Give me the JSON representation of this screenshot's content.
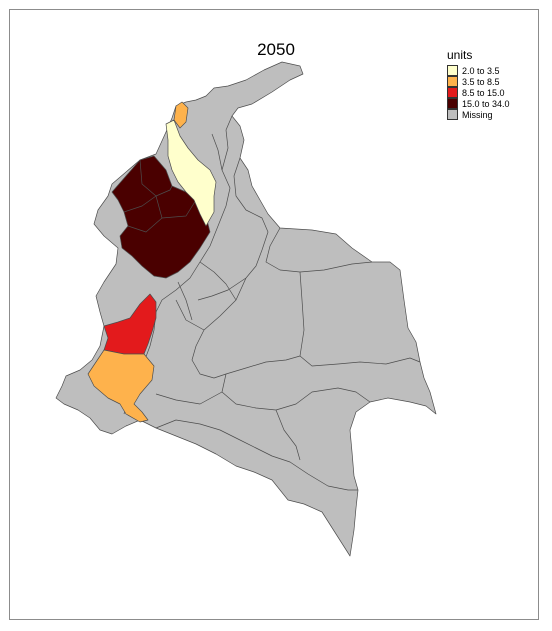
{
  "map": {
    "title": "2050",
    "missing_color": "#bebebe",
    "legend": {
      "title": "units",
      "items": [
        {
          "label": "2.0 to 3.5",
          "color": "#ffffcc"
        },
        {
          "label": "3.5 to 8.5",
          "color": "#feb24c"
        },
        {
          "label": "8.5 to 15.0",
          "color": "#e31a1c"
        },
        {
          "label": "15.0 to 34.0",
          "color": "#4a0000"
        },
        {
          "label": "Missing",
          "color": "#bebebe"
        }
      ]
    }
  }
}
